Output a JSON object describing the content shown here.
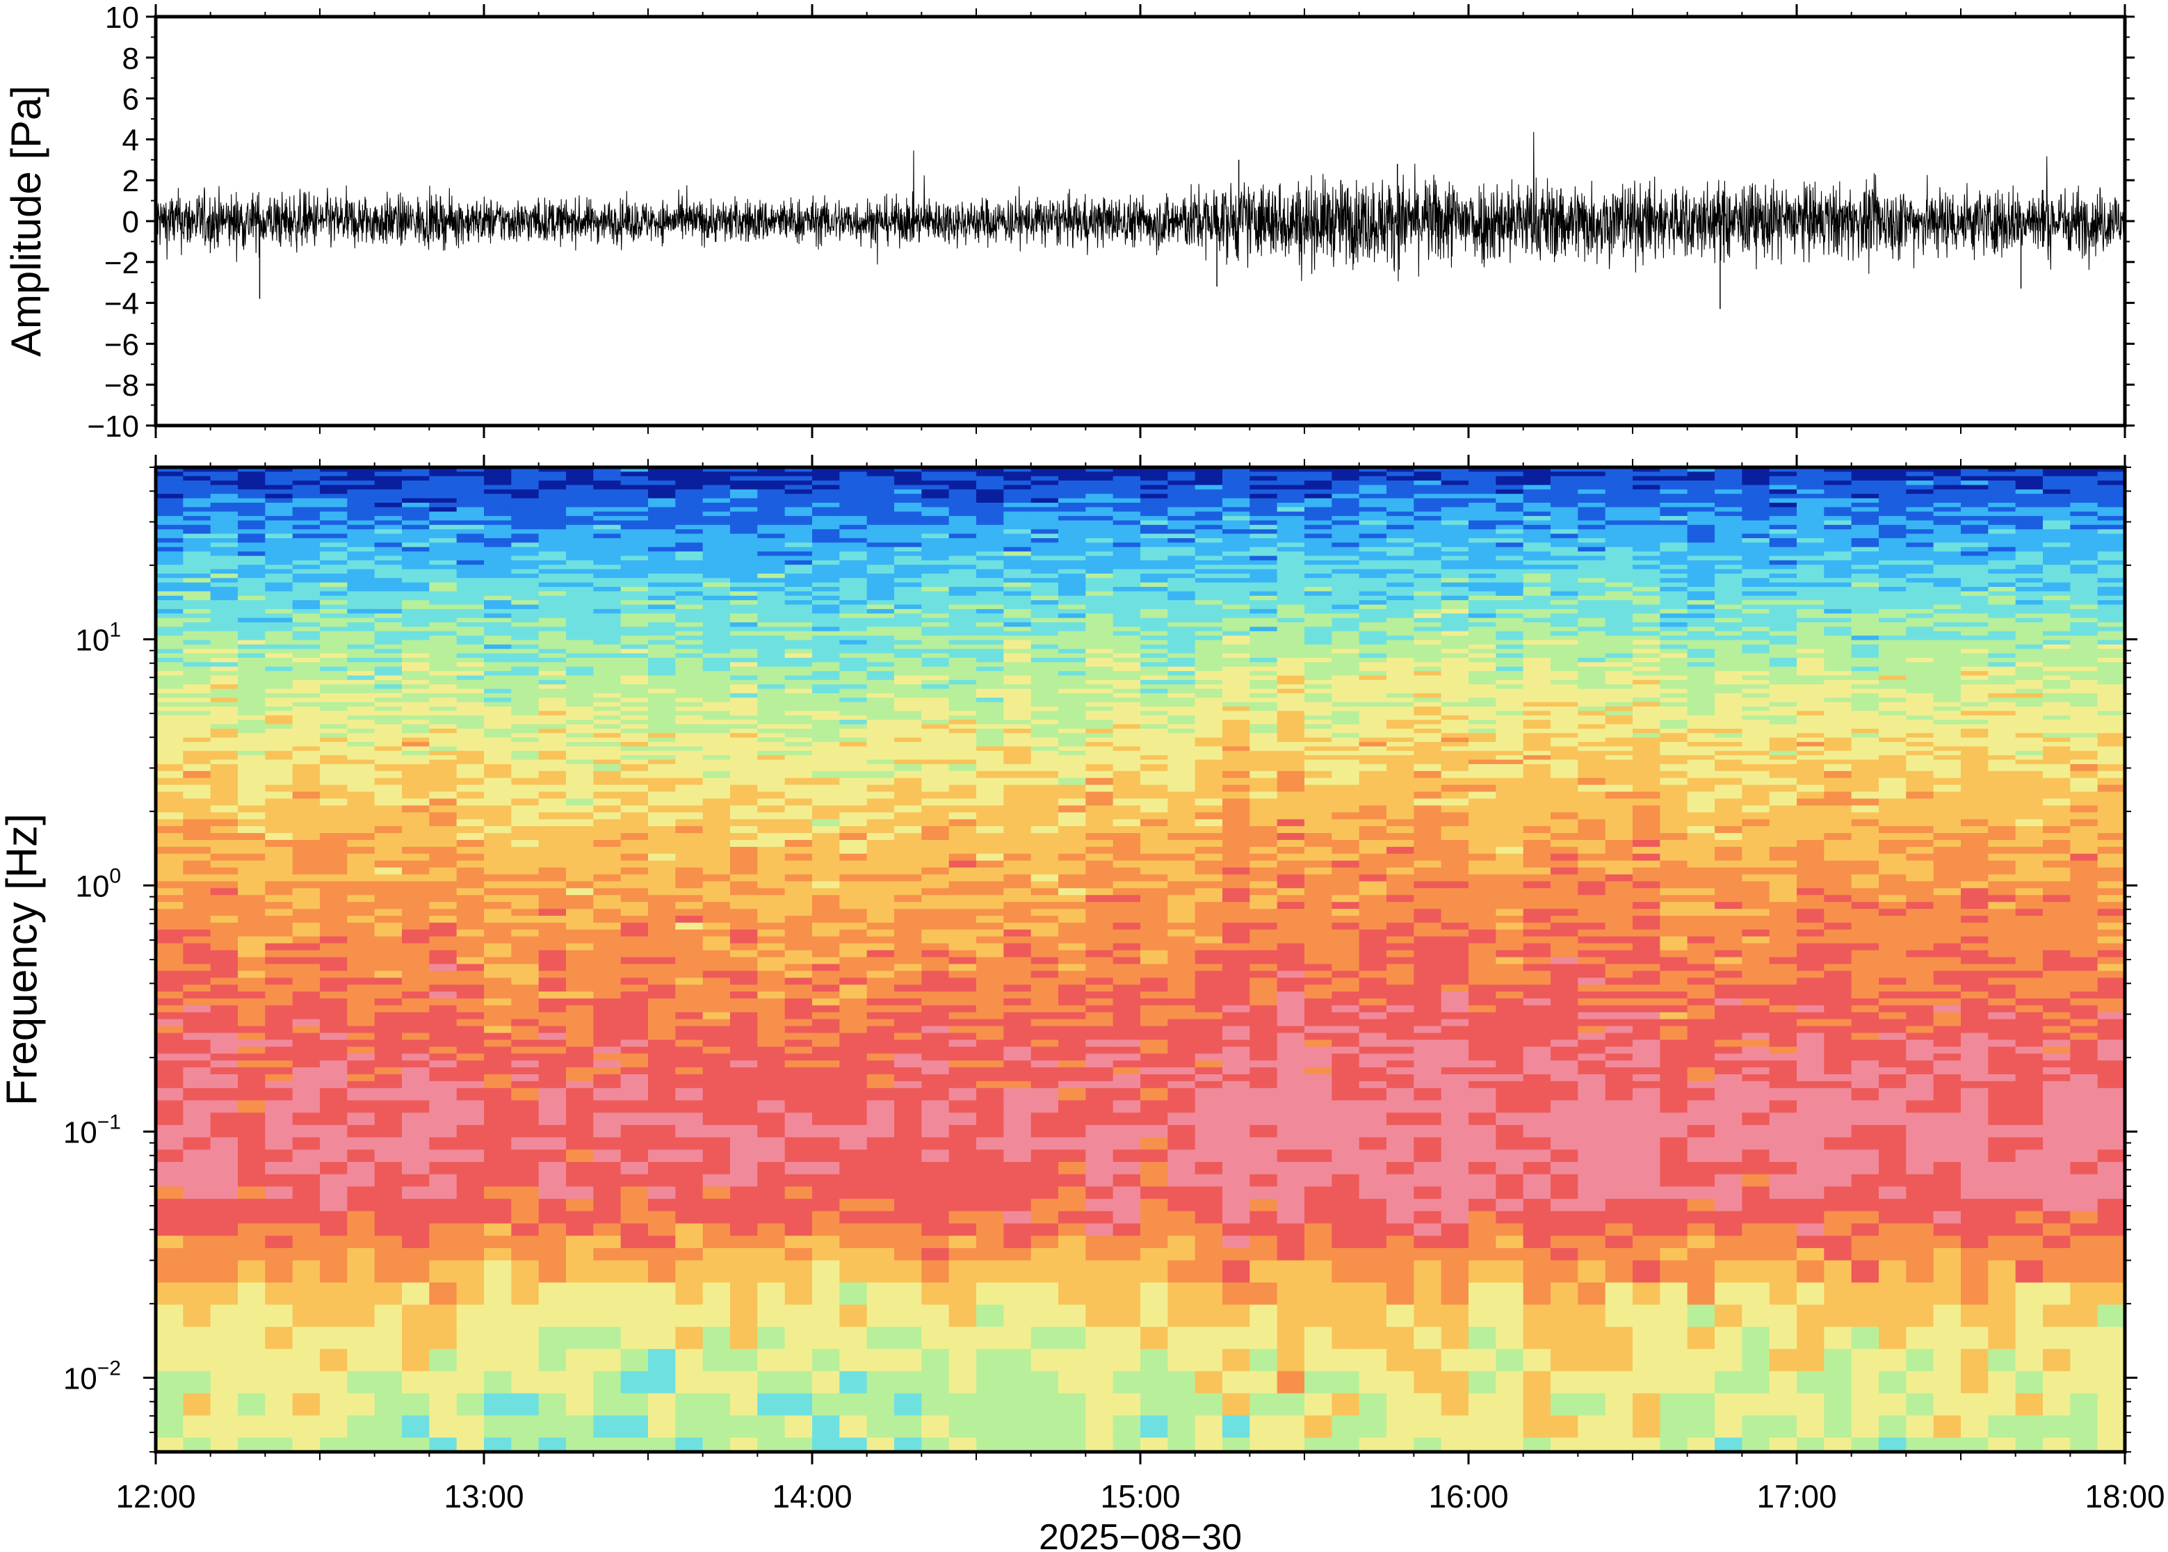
{
  "chart_data": [
    {
      "type": "line",
      "title": "",
      "xlabel": "",
      "ylabel": "Amplitude [Pa]",
      "xlim": [
        "12:00",
        "18:00"
      ],
      "ylim": [
        -10,
        10
      ],
      "y_ticks": [
        10,
        8,
        6,
        4,
        2,
        0,
        -2,
        -4,
        -6,
        -8,
        -10
      ],
      "y_tick_labels": [
        "10",
        "8",
        "6",
        "4",
        "2",
        "0",
        "−2",
        "−4",
        "−6",
        "−8",
        "−10"
      ],
      "series": [
        {
          "x_start": "12:00",
          "x_end": "18:00",
          "envelope_x": [
            "12:00",
            "12:30",
            "13:00",
            "13:30",
            "14:00",
            "14:30",
            "15:00",
            "15:15",
            "15:30",
            "16:00",
            "16:30",
            "17:00",
            "17:30",
            "18:00"
          ],
          "envelope_amplitude": [
            1.3,
            1.2,
            1.0,
            0.9,
            1.0,
            1.0,
            1.1,
            1.6,
            1.8,
            1.9,
            1.7,
            1.6,
            1.5,
            1.4
          ],
          "peaks": [
            {
              "x": "12:19",
              "value": -3.8
            },
            {
              "x": "15:18",
              "value": 3.0
            },
            {
              "x": "15:47",
              "value": 2.8
            },
            {
              "x": "16:46",
              "value": -4.3
            },
            {
              "x": "17:41",
              "value": -3.3
            },
            {
              "x": "15:14",
              "value": -3.2
            }
          ]
        }
      ],
      "color": "#000000",
      "grid": false
    },
    {
      "type": "heatmap",
      "title": "",
      "xlabel": "2025−08−30",
      "ylabel": "Frequency [Hz]",
      "xlim": [
        "12:00",
        "18:00"
      ],
      "ylim": [
        0.005,
        50
      ],
      "y_scale": "log",
      "x_ticks": [
        "12:00",
        "13:00",
        "14:00",
        "15:00",
        "16:00",
        "17:00",
        "18:00"
      ],
      "y_ticks": [
        {
          "base": "10",
          "exp": "1"
        },
        {
          "base": "10",
          "exp": "0"
        },
        {
          "base": "10",
          "exp": "−1"
        },
        {
          "base": "10",
          "exp": "−2"
        }
      ],
      "colormap": [
        "#0a1f9e",
        "#1b5fe0",
        "#39b4f5",
        "#6fe0e0",
        "#b8ef9a",
        "#f2ee90",
        "#f9c35a",
        "#f7904b",
        "#ee5a5a",
        "#f08a9a"
      ],
      "frequency_profile": [
        {
          "f": 0.005,
          "level": 4.2
        },
        {
          "f": 0.01,
          "level": 4.6
        },
        {
          "f": 0.02,
          "level": 5.4
        },
        {
          "f": 0.035,
          "level": 7.1
        },
        {
          "f": 0.06,
          "level": 8.4
        },
        {
          "f": 0.1,
          "level": 8.6
        },
        {
          "f": 0.2,
          "level": 8.1
        },
        {
          "f": 0.5,
          "level": 7.1
        },
        {
          "f": 1,
          "level": 6.6
        },
        {
          "f": 3,
          "level": 5.4
        },
        {
          "f": 6,
          "level": 4.4
        },
        {
          "f": 10,
          "level": 3.6
        },
        {
          "f": 20,
          "level": 2.4
        },
        {
          "f": 35,
          "level": 1.3
        },
        {
          "f": 50,
          "level": 0.2
        }
      ],
      "time_variation": [
        {
          "x": "12:00",
          "offset": 0.0
        },
        {
          "x": "13:00",
          "offset": -0.1
        },
        {
          "x": "14:00",
          "offset": -0.3
        },
        {
          "x": "14:30",
          "offset": -0.2
        },
        {
          "x": "15:00",
          "offset": 0.1
        },
        {
          "x": "15:20",
          "offset": 0.5
        },
        {
          "x": "16:00",
          "offset": 0.4
        },
        {
          "x": "17:00",
          "offset": 0.3
        },
        {
          "x": "18:00",
          "offset": 0.1
        }
      ]
    }
  ]
}
